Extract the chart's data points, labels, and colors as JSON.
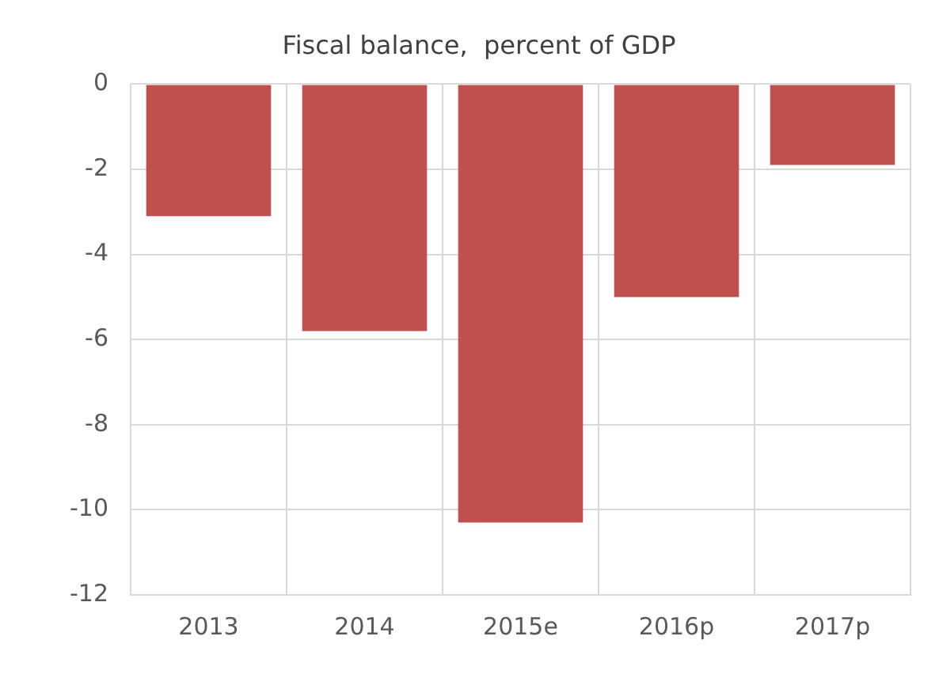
{
  "chart_data": {
    "type": "bar",
    "title": "Fiscal balance,  percent of GDP",
    "categories": [
      "2013",
      "2014",
      "2015e",
      "2016p",
      "2017p"
    ],
    "values": [
      -3.1,
      -5.8,
      -10.3,
      -5.0,
      -1.9
    ],
    "color": "#c0504d",
    "ylim": [
      -12,
      0
    ],
    "yticks": [
      -12,
      -10,
      -8,
      -6,
      -4,
      -2,
      0
    ],
    "grid": true
  }
}
